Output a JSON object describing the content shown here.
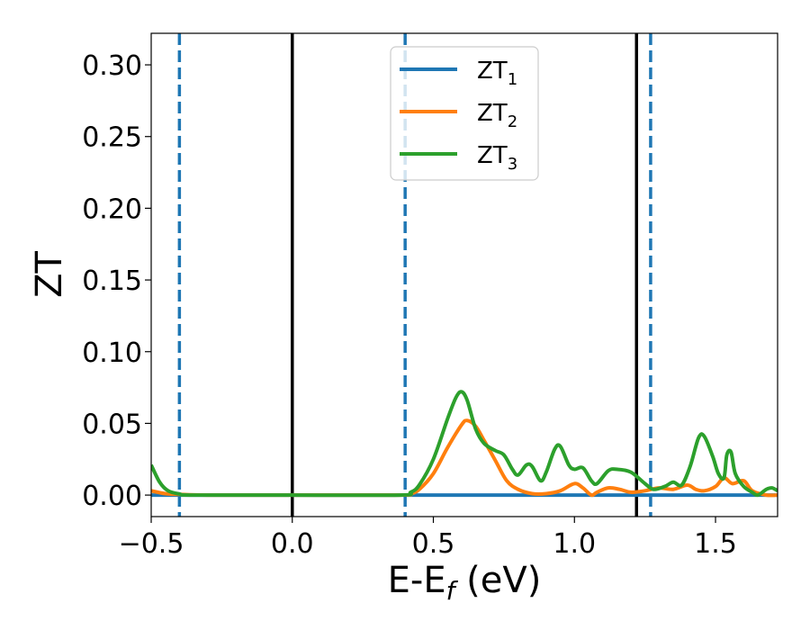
{
  "chart_data": {
    "type": "line",
    "xlabel": "E-E",
    "xlabel_sub": "f",
    "xlabel_unit": " (eV)",
    "ylabel": "ZT",
    "xlim": [
      -0.5,
      1.72
    ],
    "ylim": [
      -0.015,
      0.322
    ],
    "xticks": [
      -0.5,
      0.0,
      0.5,
      1.0,
      1.5
    ],
    "xtick_labels": [
      "−0.5",
      "0.0",
      "0.5",
      "1.0",
      "1.5"
    ],
    "yticks": [
      0.0,
      0.05,
      0.1,
      0.15,
      0.2,
      0.25,
      0.3
    ],
    "ytick_labels": [
      "0.00",
      "0.05",
      "0.10",
      "0.15",
      "0.20",
      "0.25",
      "0.30"
    ],
    "grid": false,
    "legend_placement": "upper-center",
    "vlines": [
      {
        "x": -0.4,
        "style": "dashed",
        "color": "#1f77b4"
      },
      {
        "x": 0.0,
        "style": "solid",
        "color": "#000000"
      },
      {
        "x": 0.4,
        "style": "dashed",
        "color": "#1f77b4"
      },
      {
        "x": 1.22,
        "style": "solid",
        "color": "#000000"
      },
      {
        "x": 1.27,
        "style": "dashed",
        "color": "#1f77b4"
      }
    ],
    "series": [
      {
        "name": "ZT",
        "sub": "1",
        "color": "#1f77b4",
        "points": [
          [
            -0.5,
            0.0
          ],
          [
            1.72,
            0.0
          ]
        ]
      },
      {
        "name": "ZT",
        "sub": "2",
        "color": "#ff7f0e",
        "points": [
          [
            -0.5,
            0.003
          ],
          [
            -0.45,
            0.001
          ],
          [
            -0.4,
            0.0005
          ],
          [
            -0.3,
            0.0
          ],
          [
            0.0,
            0.0
          ],
          [
            0.38,
            0.0
          ],
          [
            0.42,
            0.001
          ],
          [
            0.45,
            0.004
          ],
          [
            0.5,
            0.015
          ],
          [
            0.55,
            0.033
          ],
          [
            0.6,
            0.049
          ],
          [
            0.62,
            0.052
          ],
          [
            0.65,
            0.048
          ],
          [
            0.68,
            0.038
          ],
          [
            0.72,
            0.024
          ],
          [
            0.76,
            0.01
          ],
          [
            0.8,
            0.004
          ],
          [
            0.85,
            0.001
          ],
          [
            0.9,
            0.001
          ],
          [
            0.95,
            0.003
          ],
          [
            1.0,
            0.008
          ],
          [
            1.03,
            0.005
          ],
          [
            1.06,
            0.0
          ],
          [
            1.08,
            0.002
          ],
          [
            1.12,
            0.005
          ],
          [
            1.16,
            0.004
          ],
          [
            1.2,
            0.002
          ],
          [
            1.25,
            0.003
          ],
          [
            1.3,
            0.005
          ],
          [
            1.35,
            0.004
          ],
          [
            1.4,
            0.007
          ],
          [
            1.43,
            0.004
          ],
          [
            1.46,
            0.003
          ],
          [
            1.5,
            0.006
          ],
          [
            1.53,
            0.012
          ],
          [
            1.56,
            0.008
          ],
          [
            1.6,
            0.01
          ],
          [
            1.63,
            0.003
          ],
          [
            1.68,
            0.0
          ],
          [
            1.72,
            0.0
          ]
        ]
      },
      {
        "name": "ZT",
        "sub": "3",
        "color": "#2ca02c",
        "points": [
          [
            -0.5,
            0.021
          ],
          [
            -0.47,
            0.009
          ],
          [
            -0.44,
            0.003
          ],
          [
            -0.4,
            0.0008
          ],
          [
            -0.35,
            0.0
          ],
          [
            0.0,
            0.0
          ],
          [
            0.38,
            0.0
          ],
          [
            0.42,
            0.002
          ],
          [
            0.45,
            0.007
          ],
          [
            0.5,
            0.025
          ],
          [
            0.55,
            0.053
          ],
          [
            0.58,
            0.068
          ],
          [
            0.6,
            0.072
          ],
          [
            0.62,
            0.066
          ],
          [
            0.65,
            0.046
          ],
          [
            0.68,
            0.036
          ],
          [
            0.72,
            0.031
          ],
          [
            0.75,
            0.028
          ],
          [
            0.78,
            0.018
          ],
          [
            0.8,
            0.014
          ],
          [
            0.83,
            0.021
          ],
          [
            0.85,
            0.02
          ],
          [
            0.88,
            0.01
          ],
          [
            0.9,
            0.016
          ],
          [
            0.93,
            0.032
          ],
          [
            0.95,
            0.034
          ],
          [
            0.98,
            0.021
          ],
          [
            1.0,
            0.018
          ],
          [
            1.03,
            0.019
          ],
          [
            1.06,
            0.01
          ],
          [
            1.08,
            0.008
          ],
          [
            1.12,
            0.017
          ],
          [
            1.15,
            0.018
          ],
          [
            1.2,
            0.016
          ],
          [
            1.25,
            0.008
          ],
          [
            1.28,
            0.004
          ],
          [
            1.32,
            0.006
          ],
          [
            1.35,
            0.009
          ],
          [
            1.38,
            0.007
          ],
          [
            1.41,
            0.02
          ],
          [
            1.44,
            0.04
          ],
          [
            1.46,
            0.041
          ],
          [
            1.49,
            0.027
          ],
          [
            1.51,
            0.015
          ],
          [
            1.53,
            0.012
          ],
          [
            1.54,
            0.028
          ],
          [
            1.555,
            0.03
          ],
          [
            1.57,
            0.015
          ],
          [
            1.6,
            0.006
          ],
          [
            1.63,
            0.002
          ],
          [
            1.65,
            0.0
          ],
          [
            1.68,
            0.004
          ],
          [
            1.7,
            0.005
          ],
          [
            1.72,
            0.003
          ]
        ]
      }
    ]
  }
}
